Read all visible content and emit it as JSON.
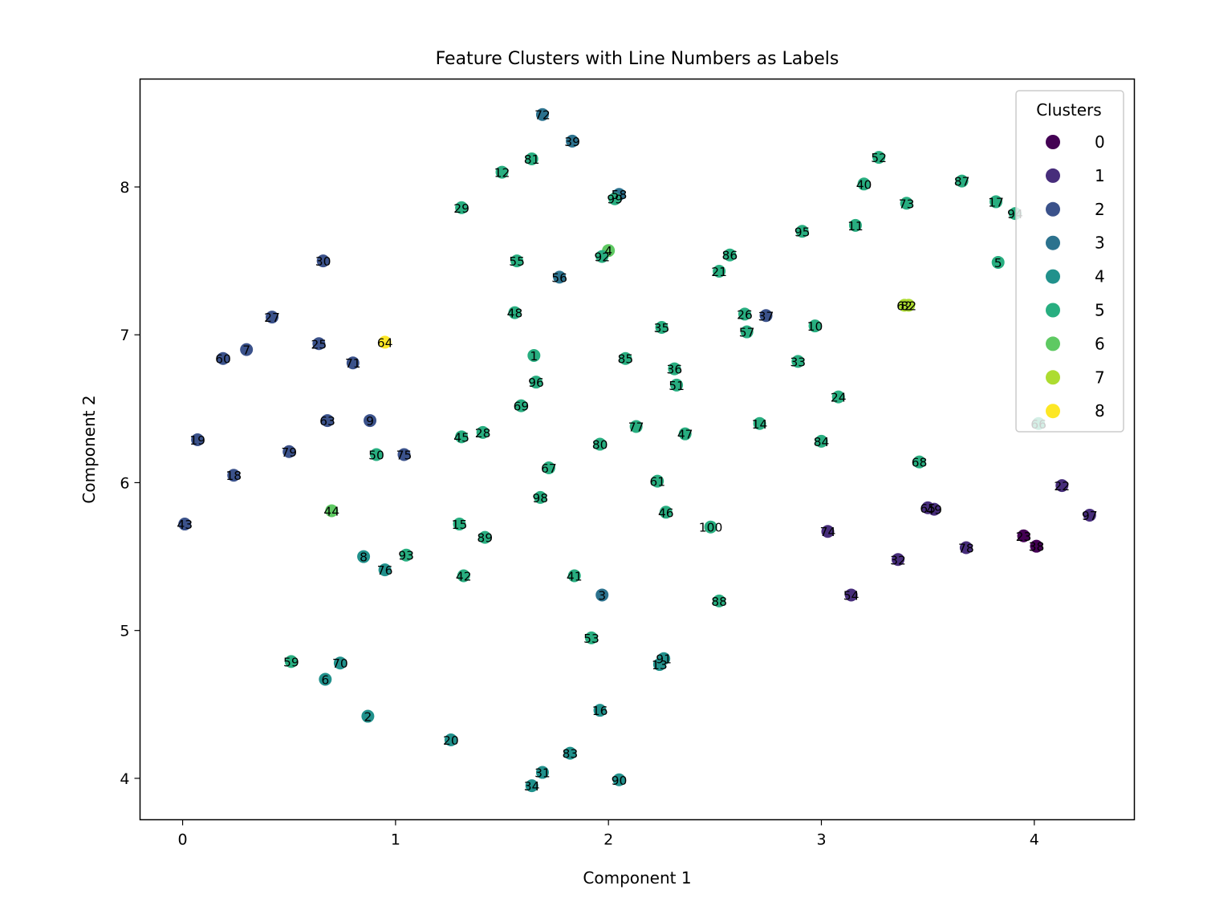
{
  "chart_data": {
    "type": "scatter",
    "title": "Feature Clusters with Line Numbers as Labels",
    "xlabel": "Component 1",
    "ylabel": "Component 2",
    "xlim": [
      -0.2,
      4.47
    ],
    "ylim": [
      3.72,
      8.73
    ],
    "xticks": [
      0,
      1,
      2,
      3,
      4
    ],
    "yticks": [
      4,
      5,
      6,
      7,
      8
    ],
    "grid": false,
    "legend": {
      "title": "Clusters",
      "placement": "top-right",
      "entries": [
        {
          "label": "0",
          "color": "#440154"
        },
        {
          "label": "1",
          "color": "#472d7b"
        },
        {
          "label": "2",
          "color": "#3b528b"
        },
        {
          "label": "3",
          "color": "#2c728e"
        },
        {
          "label": "4",
          "color": "#21918c"
        },
        {
          "label": "5",
          "color": "#28ae80"
        },
        {
          "label": "6",
          "color": "#5ec962"
        },
        {
          "label": "7",
          "color": "#addc30"
        },
        {
          "label": "8",
          "color": "#fde725"
        }
      ]
    },
    "points": [
      {
        "label": "1",
        "x": 1.65,
        "y": 6.86,
        "cluster": 5
      },
      {
        "label": "2",
        "x": 0.87,
        "y": 4.42,
        "cluster": 4
      },
      {
        "label": "3",
        "x": 1.97,
        "y": 5.24,
        "cluster": 3
      },
      {
        "label": "4",
        "x": 2.0,
        "y": 7.57,
        "cluster": 6
      },
      {
        "label": "5",
        "x": 3.83,
        "y": 7.49,
        "cluster": 5
      },
      {
        "label": "6",
        "x": 0.67,
        "y": 4.67,
        "cluster": 4
      },
      {
        "label": "7",
        "x": 0.3,
        "y": 6.9,
        "cluster": 2
      },
      {
        "label": "8",
        "x": 0.85,
        "y": 5.5,
        "cluster": 4
      },
      {
        "label": "9",
        "x": 0.88,
        "y": 6.42,
        "cluster": 2
      },
      {
        "label": "10",
        "x": 2.97,
        "y": 7.06,
        "cluster": 5
      },
      {
        "label": "11",
        "x": 3.16,
        "y": 7.74,
        "cluster": 5
      },
      {
        "label": "12",
        "x": 1.5,
        "y": 8.1,
        "cluster": 5
      },
      {
        "label": "13",
        "x": 2.24,
        "y": 4.77,
        "cluster": 4
      },
      {
        "label": "14",
        "x": 2.71,
        "y": 6.4,
        "cluster": 5
      },
      {
        "label": "15",
        "x": 1.3,
        "y": 5.72,
        "cluster": 5
      },
      {
        "label": "16",
        "x": 1.96,
        "y": 4.46,
        "cluster": 4
      },
      {
        "label": "17",
        "x": 3.82,
        "y": 7.9,
        "cluster": 5
      },
      {
        "label": "18",
        "x": 0.24,
        "y": 6.05,
        "cluster": 2
      },
      {
        "label": "19",
        "x": 0.07,
        "y": 6.29,
        "cluster": 2
      },
      {
        "label": "20",
        "x": 1.26,
        "y": 4.26,
        "cluster": 4
      },
      {
        "label": "21",
        "x": 2.52,
        "y": 7.43,
        "cluster": 5
      },
      {
        "label": "22",
        "x": 4.13,
        "y": 5.98,
        "cluster": 1
      },
      {
        "label": "23",
        "x": 3.95,
        "y": 5.64,
        "cluster": 0
      },
      {
        "label": "24",
        "x": 3.08,
        "y": 6.58,
        "cluster": 5
      },
      {
        "label": "25",
        "x": 0.64,
        "y": 6.94,
        "cluster": 2
      },
      {
        "label": "26",
        "x": 2.64,
        "y": 7.14,
        "cluster": 5
      },
      {
        "label": "27",
        "x": 0.42,
        "y": 7.12,
        "cluster": 2
      },
      {
        "label": "28",
        "x": 1.41,
        "y": 6.34,
        "cluster": 5
      },
      {
        "label": "29",
        "x": 1.31,
        "y": 7.86,
        "cluster": 5
      },
      {
        "label": "30",
        "x": 0.66,
        "y": 7.5,
        "cluster": 2
      },
      {
        "label": "31",
        "x": 1.69,
        "y": 4.04,
        "cluster": 4
      },
      {
        "label": "32",
        "x": 3.36,
        "y": 5.48,
        "cluster": 1
      },
      {
        "label": "33",
        "x": 2.89,
        "y": 6.82,
        "cluster": 5
      },
      {
        "label": "34",
        "x": 1.64,
        "y": 3.95,
        "cluster": 4
      },
      {
        "label": "35",
        "x": 2.25,
        "y": 7.05,
        "cluster": 5
      },
      {
        "label": "36",
        "x": 2.31,
        "y": 6.77,
        "cluster": 5
      },
      {
        "label": "37",
        "x": 2.74,
        "y": 7.13,
        "cluster": 2
      },
      {
        "label": "38",
        "x": 4.01,
        "y": 5.57,
        "cluster": 0
      },
      {
        "label": "39",
        "x": 1.83,
        "y": 8.31,
        "cluster": 3
      },
      {
        "label": "40",
        "x": 3.2,
        "y": 8.02,
        "cluster": 5
      },
      {
        "label": "41",
        "x": 1.84,
        "y": 5.37,
        "cluster": 5
      },
      {
        "label": "42",
        "x": 1.32,
        "y": 5.37,
        "cluster": 5
      },
      {
        "label": "43",
        "x": 0.01,
        "y": 5.72,
        "cluster": 2
      },
      {
        "label": "44",
        "x": 0.7,
        "y": 5.81,
        "cluster": 6
      },
      {
        "label": "45",
        "x": 1.31,
        "y": 6.31,
        "cluster": 5
      },
      {
        "label": "46",
        "x": 2.27,
        "y": 5.8,
        "cluster": 5
      },
      {
        "label": "47",
        "x": 2.36,
        "y": 6.33,
        "cluster": 5
      },
      {
        "label": "48",
        "x": 1.56,
        "y": 7.15,
        "cluster": 5
      },
      {
        "label": "49",
        "x": 3.53,
        "y": 5.82,
        "cluster": 1
      },
      {
        "label": "50",
        "x": 0.91,
        "y": 6.19,
        "cluster": 5
      },
      {
        "label": "51",
        "x": 2.32,
        "y": 6.66,
        "cluster": 5
      },
      {
        "label": "52",
        "x": 3.27,
        "y": 8.2,
        "cluster": 5
      },
      {
        "label": "53",
        "x": 1.92,
        "y": 4.95,
        "cluster": 5
      },
      {
        "label": "54",
        "x": 3.14,
        "y": 5.24,
        "cluster": 1
      },
      {
        "label": "55",
        "x": 1.57,
        "y": 7.5,
        "cluster": 5
      },
      {
        "label": "56",
        "x": 1.77,
        "y": 7.39,
        "cluster": 3
      },
      {
        "label": "57",
        "x": 2.65,
        "y": 7.02,
        "cluster": 5
      },
      {
        "label": "58",
        "x": 2.05,
        "y": 7.95,
        "cluster": 3
      },
      {
        "label": "59",
        "x": 0.51,
        "y": 4.79,
        "cluster": 5
      },
      {
        "label": "60",
        "x": 0.19,
        "y": 6.84,
        "cluster": 2
      },
      {
        "label": "61",
        "x": 2.23,
        "y": 6.01,
        "cluster": 5
      },
      {
        "label": "62",
        "x": 3.39,
        "y": 7.2,
        "cluster": 7
      },
      {
        "label": "63",
        "x": 0.68,
        "y": 6.42,
        "cluster": 2
      },
      {
        "label": "64",
        "x": 0.95,
        "y": 6.95,
        "cluster": 8
      },
      {
        "label": "65",
        "x": 3.5,
        "y": 5.83,
        "cluster": 1
      },
      {
        "label": "66",
        "x": 4.02,
        "y": 6.4,
        "cluster": 5
      },
      {
        "label": "67",
        "x": 1.72,
        "y": 6.1,
        "cluster": 5
      },
      {
        "label": "68",
        "x": 3.46,
        "y": 6.14,
        "cluster": 5
      },
      {
        "label": "69",
        "x": 1.59,
        "y": 6.52,
        "cluster": 5
      },
      {
        "label": "70",
        "x": 0.74,
        "y": 4.78,
        "cluster": 4
      },
      {
        "label": "71",
        "x": 0.8,
        "y": 6.81,
        "cluster": 2
      },
      {
        "label": "72",
        "x": 1.69,
        "y": 8.49,
        "cluster": 3
      },
      {
        "label": "73",
        "x": 3.4,
        "y": 7.89,
        "cluster": 5
      },
      {
        "label": "74",
        "x": 3.03,
        "y": 5.67,
        "cluster": 1
      },
      {
        "label": "75",
        "x": 1.04,
        "y": 6.19,
        "cluster": 2
      },
      {
        "label": "76",
        "x": 0.95,
        "y": 5.41,
        "cluster": 4
      },
      {
        "label": "77",
        "x": 2.13,
        "y": 6.38,
        "cluster": 5
      },
      {
        "label": "78",
        "x": 3.68,
        "y": 5.56,
        "cluster": 1
      },
      {
        "label": "79",
        "x": 0.5,
        "y": 6.21,
        "cluster": 2
      },
      {
        "label": "80",
        "x": 1.96,
        "y": 6.26,
        "cluster": 5
      },
      {
        "label": "81",
        "x": 1.64,
        "y": 8.19,
        "cluster": 5
      },
      {
        "label": "82",
        "x": 3.41,
        "y": 7.2,
        "cluster": 7
      },
      {
        "label": "83",
        "x": 1.82,
        "y": 4.17,
        "cluster": 4
      },
      {
        "label": "84",
        "x": 3.0,
        "y": 6.28,
        "cluster": 5
      },
      {
        "label": "85",
        "x": 2.08,
        "y": 6.84,
        "cluster": 5
      },
      {
        "label": "86",
        "x": 2.57,
        "y": 7.54,
        "cluster": 5
      },
      {
        "label": "87",
        "x": 3.66,
        "y": 8.04,
        "cluster": 5
      },
      {
        "label": "88",
        "x": 2.52,
        "y": 5.2,
        "cluster": 5
      },
      {
        "label": "89",
        "x": 1.42,
        "y": 5.63,
        "cluster": 5
      },
      {
        "label": "90",
        "x": 2.05,
        "y": 3.99,
        "cluster": 4
      },
      {
        "label": "91",
        "x": 2.26,
        "y": 4.81,
        "cluster": 4
      },
      {
        "label": "92",
        "x": 1.97,
        "y": 7.53,
        "cluster": 5
      },
      {
        "label": "93",
        "x": 1.05,
        "y": 5.51,
        "cluster": 5
      },
      {
        "label": "94",
        "x": 3.91,
        "y": 7.82,
        "cluster": 5
      },
      {
        "label": "95",
        "x": 2.91,
        "y": 7.7,
        "cluster": 5
      },
      {
        "label": "96",
        "x": 1.66,
        "y": 6.68,
        "cluster": 5
      },
      {
        "label": "97",
        "x": 4.26,
        "y": 5.78,
        "cluster": 1
      },
      {
        "label": "98",
        "x": 1.68,
        "y": 5.9,
        "cluster": 5
      },
      {
        "label": "99",
        "x": 2.03,
        "y": 7.92,
        "cluster": 5
      },
      {
        "label": "100",
        "x": 2.48,
        "y": 5.7,
        "cluster": 5
      }
    ]
  }
}
